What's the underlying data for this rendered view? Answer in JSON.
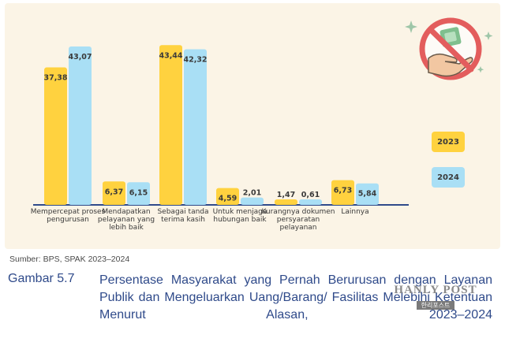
{
  "chart_data": {
    "type": "bar",
    "categories": [
      "Mempercepat proses pengurusan",
      "Mendapatkan pelayanan yang lebih baik",
      "Sebagai tanda terima kasih",
      "Untuk menjaga hubungan baik",
      "Kurangnya dokumen persyaratan pelayanan",
      "Lainnya"
    ],
    "series": [
      {
        "name": "2023",
        "values": [
          37.38,
          6.37,
          43.44,
          4.59,
          1.47,
          6.73
        ],
        "color": "#ffd23f"
      },
      {
        "name": "2024",
        "values": [
          43.07,
          6.15,
          42.32,
          2.01,
          0.61,
          5.84
        ],
        "color": "#a9dff5"
      }
    ],
    "value_labels": [
      [
        "37,38",
        "6,37",
        "43,44",
        "4,59",
        "1,47",
        "6,73"
      ],
      [
        "43,07",
        "6,15",
        "42,32",
        "2,01",
        "0,61",
        "5,84"
      ]
    ],
    "ylim": [
      0,
      45
    ],
    "legend_position": "right",
    "grid": false
  },
  "legend": {
    "label_2023": "2023",
    "label_2024": "2024"
  },
  "source": "Sumber: BPS, SPAK 2023–2024",
  "figure_number": "Gambar 5.7",
  "caption": "Persentase Masyarakat yang Pernah Berurusan dengan Layanan Publik dan Mengeluarkan Uang/Barang/ Fasilitas Melebihi Ketentuan Menurut Alasan, 2023–2024",
  "watermark": {
    "title": "HANLY POST",
    "subtitle": "한리포스트"
  },
  "icons": {
    "illustration": "no-money-icon",
    "sparkle": "sparkle-icon"
  }
}
